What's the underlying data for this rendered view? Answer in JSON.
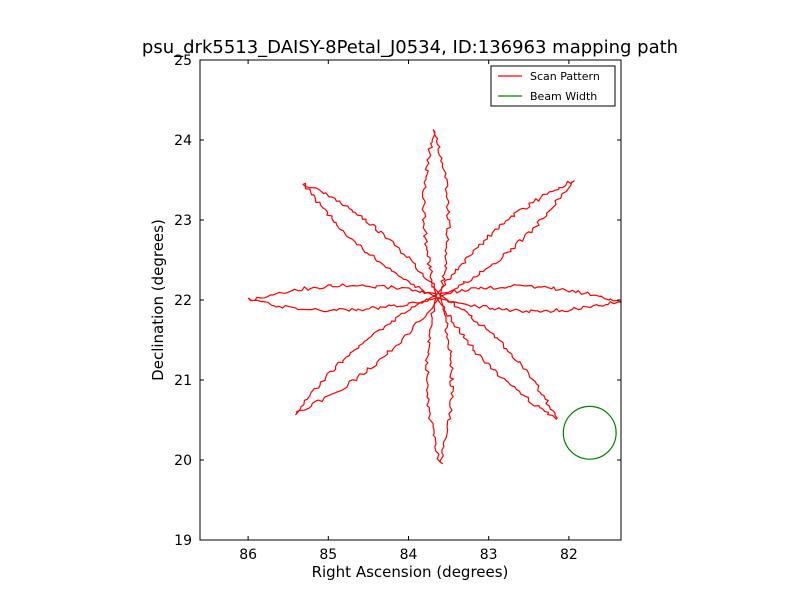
{
  "chart_data": {
    "type": "line",
    "title": "psu_drk5513_DAISY-8Petal_J0534, ID:136963 mapping path",
    "xlabel": "Right Ascension (degrees)",
    "ylabel": "Declination (degrees)",
    "xlim": [
      86.6,
      81.35
    ],
    "ylim": [
      19,
      25
    ],
    "x_inverted": true,
    "xticks": [
      86,
      85,
      84,
      83,
      82
    ],
    "yticks": [
      19,
      20,
      21,
      22,
      23,
      24,
      25
    ],
    "grid": false,
    "legend_position": "top-right",
    "colors": {
      "scan": "#ff0000",
      "beam": "#008000",
      "axes": "#000000"
    },
    "center": [
      83.63,
      22.05
    ],
    "series": [
      {
        "name": "Scan Pattern",
        "kind": "line",
        "petals": [
          {
            "tip": [
              83.68,
              24.12
            ],
            "base_width": 0.22,
            "tip_width": 0.44
          },
          {
            "tip": [
              81.95,
              23.5
            ],
            "base_width": 0.22,
            "tip_width": 0.44
          },
          {
            "tip": [
              81.36,
              21.98
            ],
            "base_width": 0.22,
            "tip_width": 0.44
          },
          {
            "tip": [
              82.15,
              20.52
            ],
            "base_width": 0.22,
            "tip_width": 0.44
          },
          {
            "tip": [
              83.6,
              19.96
            ],
            "base_width": 0.22,
            "tip_width": 0.44
          },
          {
            "tip": [
              85.4,
              20.58
            ],
            "base_width": 0.22,
            "tip_width": 0.44
          },
          {
            "tip": [
              86.0,
              22.0
            ],
            "base_width": 0.22,
            "tip_width": 0.44
          },
          {
            "tip": [
              85.3,
              23.45
            ],
            "base_width": 0.22,
            "tip_width": 0.44
          }
        ]
      },
      {
        "name": "Beam Width",
        "kind": "circle",
        "center": [
          81.74,
          20.34
        ],
        "radius": 0.33
      }
    ]
  }
}
